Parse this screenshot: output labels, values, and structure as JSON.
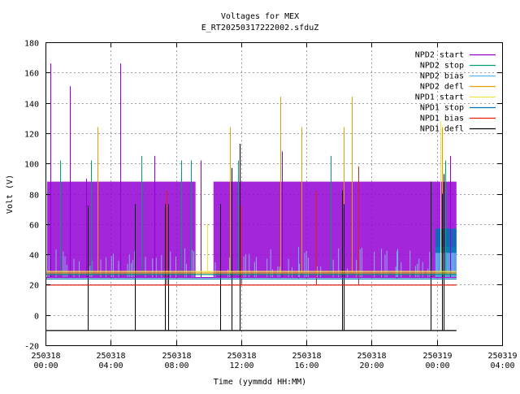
{
  "chart_data": {
    "type": "line",
    "title": "Voltages for MEX",
    "subtitle": "E_RT20250317222002.sfduZ",
    "xlabel": "Time (yymmdd HH:MM)",
    "ylabel": "Volt (V)",
    "x_unit": "hours since 250318 00:00",
    "xlim": [
      0,
      28
    ],
    "ylim": [
      -20,
      180
    ],
    "yticks": [
      -20,
      0,
      20,
      40,
      60,
      80,
      100,
      120,
      140,
      160,
      180
    ],
    "xticks": [
      {
        "value": 0,
        "line1": "250318",
        "line2": "00:00"
      },
      {
        "value": 4,
        "line1": "250318",
        "line2": "04:00"
      },
      {
        "value": 8,
        "line1": "250318",
        "line2": "08:00"
      },
      {
        "value": 12,
        "line1": "250318",
        "line2": "12:00"
      },
      {
        "value": 16,
        "line1": "250318",
        "line2": "16:00"
      },
      {
        "value": 20,
        "line1": "250318",
        "line2": "20:00"
      },
      {
        "value": 24,
        "line1": "250319",
        "line2": "00:00"
      },
      {
        "value": 28,
        "line1": "250319",
        "line2": "04:00"
      }
    ],
    "grid": true,
    "legend_position": "top-right",
    "series": [
      {
        "name": "NPD2 start",
        "color": "#9400d3",
        "baseline": 25,
        "bands": [
          [
            0.1,
            9.2,
            25,
            88
          ],
          [
            10.3,
            25.2,
            25,
            88
          ]
        ],
        "spikes": [
          [
            0.3,
            166
          ],
          [
            1.5,
            151
          ],
          [
            2.5,
            90
          ],
          [
            4.6,
            166
          ],
          [
            6.7,
            105
          ],
          [
            9.5,
            102
          ],
          [
            14.5,
            108
          ],
          [
            24.8,
            105
          ]
        ]
      },
      {
        "name": "NPD2 stop",
        "color": "#009e73",
        "baseline": 27,
        "bands": [],
        "spikes": [
          [
            0.9,
            102
          ],
          [
            2.8,
            102
          ],
          [
            5.9,
            105
          ],
          [
            8.3,
            102
          ],
          [
            8.9,
            102
          ],
          [
            11.8,
            102
          ],
          [
            17.5,
            105
          ],
          [
            24.5,
            102
          ]
        ]
      },
      {
        "name": "NPD2 bias",
        "color": "#56b4e9",
        "baseline": 24,
        "bands": [
          [
            23.9,
            25.2,
            25,
            45
          ]
        ],
        "spikes": [
          [
            15.5,
            45
          ],
          [
            21.5,
            42
          ]
        ]
      },
      {
        "name": "NPD2 defl",
        "color": "#e69f00",
        "baseline": 28,
        "bands": [],
        "spikes": [
          [
            3.2,
            124
          ],
          [
            11.3,
            124
          ],
          [
            14.4,
            144
          ],
          [
            15.7,
            124
          ],
          [
            18.3,
            124
          ],
          [
            18.8,
            144
          ],
          [
            24.3,
            124
          ]
        ]
      },
      {
        "name": "NPD1 start",
        "color": "#f0e442",
        "baseline": 29,
        "bands": [],
        "spikes": [
          [
            24.2,
            128
          ],
          [
            9.9,
            60
          ]
        ]
      },
      {
        "name": "NPD1 stop",
        "color": "#0072b2",
        "baseline": 24,
        "bands": [
          [
            23.9,
            25.2,
            41,
            57
          ]
        ],
        "spikes": []
      },
      {
        "name": "NPD1 bias",
        "color": "#e51e10",
        "baseline": 20,
        "bands": [],
        "spikes": [
          [
            7.4,
            82
          ],
          [
            12.0,
            72
          ],
          [
            16.6,
            82
          ],
          [
            19.2,
            98
          ]
        ]
      },
      {
        "name": "NPD1 defl",
        "color": "#000000",
        "baseline": -10,
        "bands": [],
        "spikes": [
          [
            2.6,
            72
          ],
          [
            5.5,
            73
          ],
          [
            7.3,
            73
          ],
          [
            7.5,
            73
          ],
          [
            10.7,
            73
          ],
          [
            11.4,
            97
          ],
          [
            11.9,
            113
          ],
          [
            18.2,
            82
          ],
          [
            18.3,
            73
          ],
          [
            23.6,
            88
          ],
          [
            24.3,
            80
          ],
          [
            24.4,
            93
          ]
        ]
      }
    ]
  }
}
